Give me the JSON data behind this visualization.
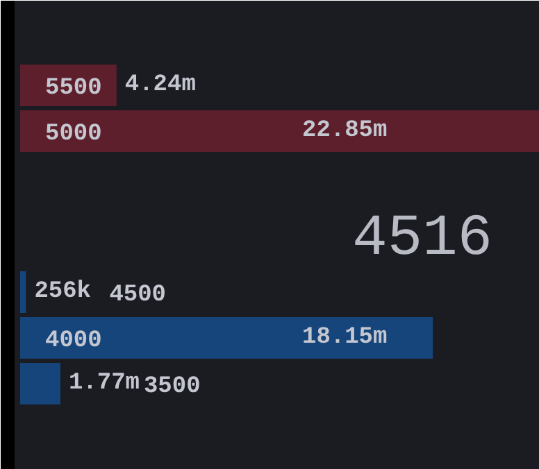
{
  "chart_data": {
    "type": "bar",
    "orientation": "horizontal",
    "categories": [
      "5500",
      "5000",
      null,
      "4500",
      "4000",
      "3500"
    ],
    "xlim": [
      0,
      22850000
    ],
    "tick_labels": false,
    "values": [
      4240000,
      22850000,
      null,
      256000,
      18150000,
      1770000
    ],
    "colors": [
      "#5c1f2b",
      "#5c1f2b",
      null,
      "#15457a",
      "#15457a",
      "#15457a"
    ],
    "value_labels": [
      "4.24m",
      "22.85m",
      null,
      "256k",
      "18.15m",
      "1.77m"
    ],
    "annotations": [
      "4516"
    ]
  }
}
